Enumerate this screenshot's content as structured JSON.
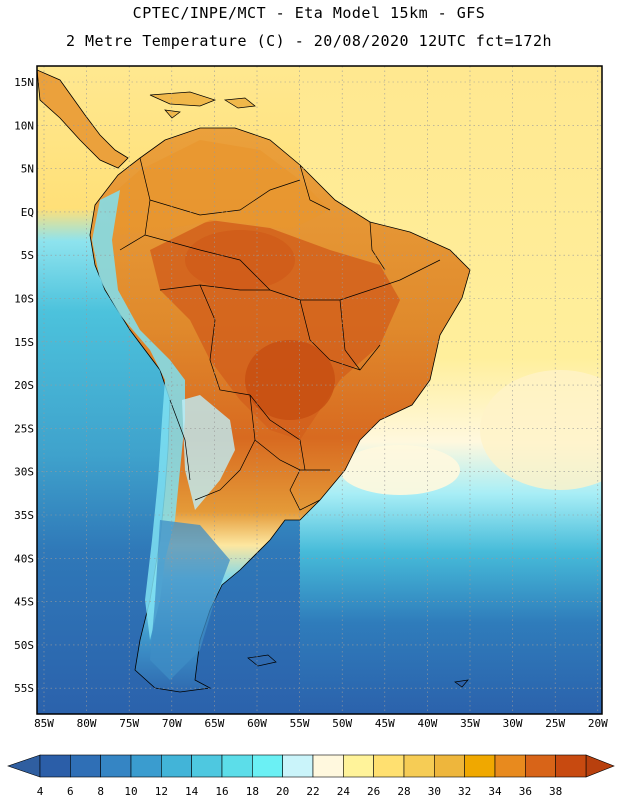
{
  "header": {
    "title_line1": "CPTEC/INPE/MCT -  Eta Model 15km - GFS",
    "title_line2": "2 Metre Temperature (C) - 20/08/2020 12UTC fct=172h"
  },
  "map": {
    "lat_labels": [
      "15N",
      "10N",
      "5N",
      "EQ",
      "5S",
      "10S",
      "15S",
      "20S",
      "25S",
      "30S",
      "35S",
      "40S",
      "45S",
      "50S",
      "55S"
    ],
    "lon_labels": [
      "85W",
      "80W",
      "75W",
      "70W",
      "65W",
      "60W",
      "55W",
      "50W",
      "45W",
      "40W",
      "35W",
      "30W",
      "25W",
      "20W"
    ],
    "colors": {
      "ocean_south": "#2f6ab0",
      "ocean_mid": "#45b8d8",
      "ocean_warm": "#ffe890",
      "land_hot": "#d2601c",
      "land_warm": "#eda53a",
      "andes_cold": "#7fe0f2",
      "border": "#000000"
    }
  },
  "colorbar": {
    "ticks": [
      "4",
      "6",
      "8",
      "10",
      "12",
      "14",
      "16",
      "18",
      "20",
      "22",
      "24",
      "26",
      "28",
      "30",
      "32",
      "34",
      "36",
      "38"
    ],
    "colors": [
      "#2b5ea8",
      "#2f6fb6",
      "#3585c4",
      "#3a9ccf",
      "#42b4d8",
      "#4ec8e0",
      "#5cdde9",
      "#6bf0f4",
      "#caf4fa",
      "#fff8de",
      "#fff39a",
      "#ffe070",
      "#f6cc55",
      "#eeb63c",
      "#f0a800",
      "#e88a1e",
      "#d86418",
      "#c84a10"
    ],
    "left_arrow_color": "#2f5ea0",
    "right_arrow_color": "#b8400e"
  }
}
